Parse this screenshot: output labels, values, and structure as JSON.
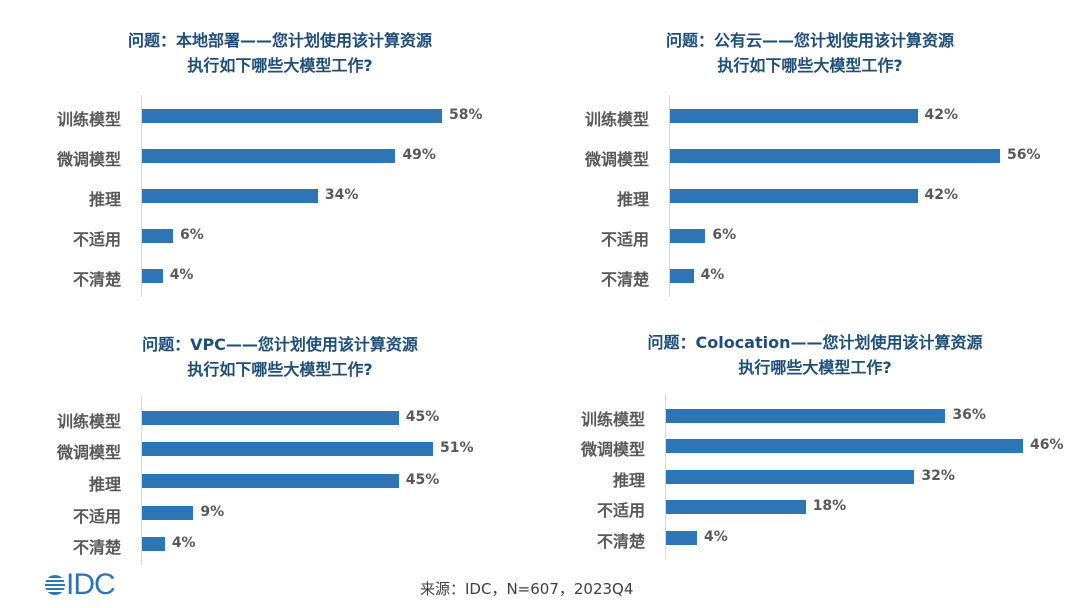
{
  "chart_data": [
    {
      "type": "bar",
      "orientation": "horizontal",
      "title": [
        "问题：本地部署——您计划使用该计算资源",
        "执行如下哪些大模型工作?"
      ],
      "categories": [
        "训练模型",
        "微调模型",
        "推理",
        "不适用",
        "不清楚"
      ],
      "values": [
        58,
        49,
        34,
        6,
        4
      ],
      "unit": "%",
      "color": "#2e75b6"
    },
    {
      "type": "bar",
      "orientation": "horizontal",
      "title": [
        "问题：公有云——您计划使用该计算资源",
        "执行如下哪些大模型工作?"
      ],
      "categories": [
        "训练模型",
        "微调模型",
        "推理",
        "不适用",
        "不清楚"
      ],
      "values": [
        42,
        56,
        42,
        6,
        4
      ],
      "unit": "%",
      "color": "#2e75b6"
    },
    {
      "type": "bar",
      "orientation": "horizontal",
      "title": [
        "问题：VPC——您计划使用该计算资源",
        "执行如下哪些大模型工作?"
      ],
      "categories": [
        "训练模型",
        "微调模型",
        "推理",
        "不适用",
        "不清楚"
      ],
      "values": [
        45,
        51,
        45,
        9,
        4
      ],
      "unit": "%",
      "color": "#2e75b6"
    },
    {
      "type": "bar",
      "orientation": "horizontal",
      "title": [
        "问题：Colocation——您计划使用该计算资源",
        "执行哪些大模型工作?"
      ],
      "categories": [
        "训练模型",
        "微调模型",
        "推理",
        "不适用",
        "不清楚"
      ],
      "values": [
        36,
        46,
        32,
        18,
        4
      ],
      "unit": "%",
      "color": "#2e75b6"
    }
  ],
  "footer": {
    "logo": "IDC",
    "source": "来源：IDC，N=607，2023Q4"
  },
  "colors": {
    "title": "#1f4e79",
    "bar": "#2e75b6",
    "label": "#595959"
  }
}
